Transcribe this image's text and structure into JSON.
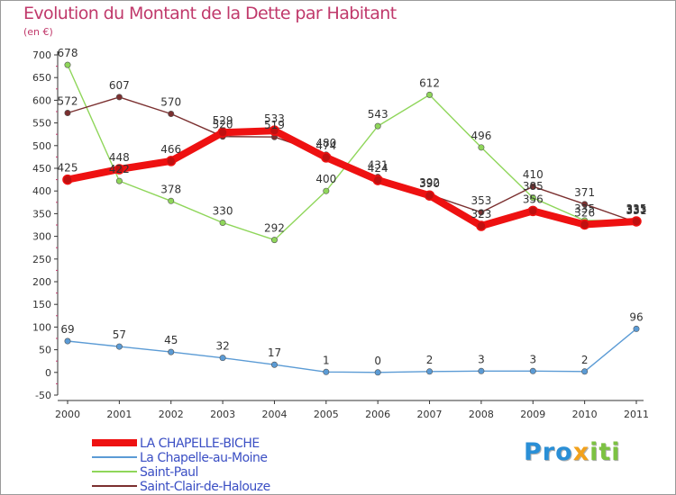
{
  "title": "Evolution du Montant de la Dette par Habitant",
  "subtitle": "(en €)",
  "logo": {
    "text": "Proxiti",
    "letters": [
      {
        "ch": "P",
        "color": "#2a8fd6"
      },
      {
        "ch": "r",
        "color": "#2a8fd6"
      },
      {
        "ch": "o",
        "color": "#2a8fd6"
      },
      {
        "ch": "x",
        "color": "#f2a11b"
      },
      {
        "ch": "i",
        "color": "#7cc242"
      },
      {
        "ch": "t",
        "color": "#7cc242"
      },
      {
        "ch": "i",
        "color": "#7cc242"
      }
    ]
  },
  "chart_data": {
    "type": "line",
    "title": "Evolution du Montant de la Dette par Habitant",
    "ylabel": "(en €)",
    "xlabel": "",
    "x": [
      "2000",
      "2001",
      "2002",
      "2003",
      "2004",
      "2005",
      "2006",
      "2007",
      "2008",
      "2009",
      "2010",
      "2011"
    ],
    "ylim": [
      -50,
      700
    ],
    "yticks": [
      -50,
      0,
      50,
      100,
      150,
      200,
      250,
      300,
      350,
      400,
      450,
      500,
      550,
      600,
      650,
      700
    ],
    "grid": false,
    "legend_position": "bottom-left",
    "series": [
      {
        "name": "La Chapelle-au-Moine",
        "color": "#5b9bd5",
        "width": 1.4,
        "values": [
          69,
          57,
          45,
          32,
          17,
          1,
          0,
          2,
          3,
          3,
          2,
          96
        ],
        "labels": [
          "69",
          "57",
          "45",
          "32",
          "17",
          "1",
          "0",
          "2",
          "3",
          "3",
          "2",
          "96"
        ]
      },
      {
        "name": "Saint-Paul",
        "color": "#8fd65a",
        "width": 1.4,
        "values": [
          678,
          422,
          378,
          330,
          292,
          400,
          543,
          612,
          496,
          385,
          335,
          335
        ],
        "labels": [
          "678",
          "422",
          "378",
          "330",
          "292",
          "400",
          "543",
          "612",
          "496",
          "385",
          "335",
          "335"
        ]
      },
      {
        "name": "Saint-Clair-de-Halouze",
        "color": "#7b3030",
        "width": 1.4,
        "values": [
          572,
          607,
          570,
          520,
          519,
          480,
          431,
          392,
          353,
          410,
          371,
          331
        ],
        "labels": [
          "572",
          "607",
          "570",
          "520",
          "519",
          "480",
          "431",
          "392",
          "353",
          "410",
          "371",
          "331"
        ]
      },
      {
        "name": "LA CHAPELLE-BICHE",
        "color": "#ee1111",
        "width": 8,
        "values": [
          425,
          448,
          466,
          529,
          533,
          474,
          424,
          390,
          323,
          356,
          326,
          333
        ],
        "labels": [
          "425",
          "448",
          "466",
          "529",
          "533",
          "474",
          "424",
          "390",
          "323",
          "356",
          "326",
          "333"
        ]
      }
    ],
    "legend": [
      {
        "name": "LA CHAPELLE-BICHE",
        "color": "#ee1111",
        "width": 8
      },
      {
        "name": "La Chapelle-au-Moine",
        "color": "#5b9bd5",
        "width": 2
      },
      {
        "name": "Saint-Paul",
        "color": "#8fd65a",
        "width": 2
      },
      {
        "name": "Saint-Clair-de-Halouze",
        "color": "#7b3030",
        "width": 2
      }
    ]
  }
}
